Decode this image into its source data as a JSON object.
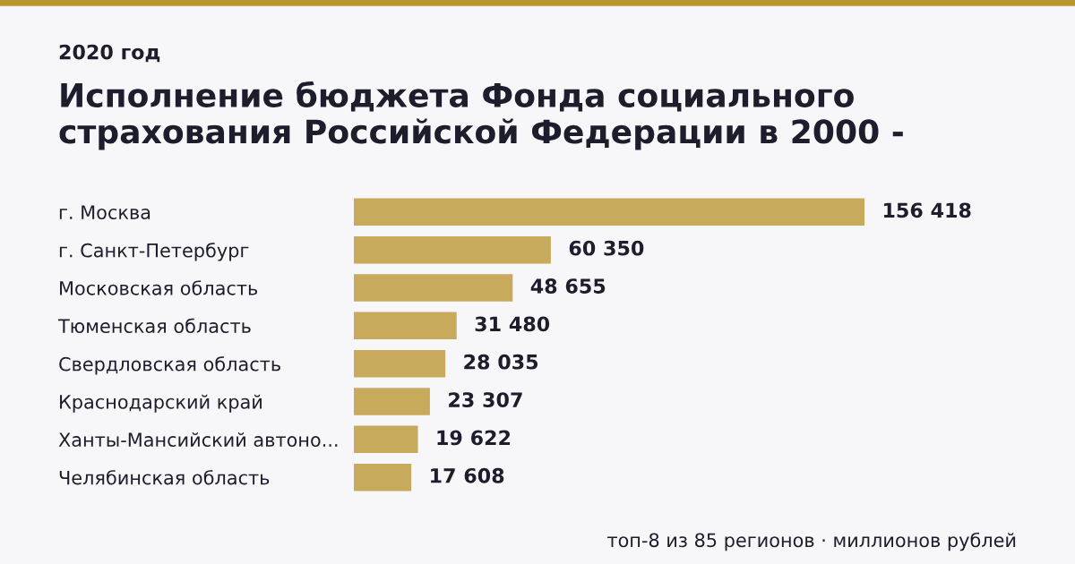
{
  "chart_data": {
    "type": "bar",
    "orientation": "horizontal",
    "title": "Исполнение бюджета Фонда социального страхования Российской Федерации в 2000 -",
    "subtitle": "2020 год",
    "categories": [
      "г. Москва",
      "г. Санкт-Петербург",
      "Московская область",
      "Тюменская область",
      "Свердловская область",
      "Краснодарский край",
      "Ханты-Мансийский автоно...",
      "Челябинская область"
    ],
    "values": [
      156418,
      60350,
      48655,
      31480,
      28035,
      23307,
      19622,
      17608
    ],
    "value_labels": [
      "156 418",
      "60 350",
      "48 655",
      "31 480",
      "28 035",
      "23 307",
      "19 622",
      "17 608"
    ],
    "color": "#c8aa5c",
    "grid": false,
    "legend": false,
    "annotations": [
      "топ-8 из 85 регионов · миллионов рублей"
    ]
  }
}
